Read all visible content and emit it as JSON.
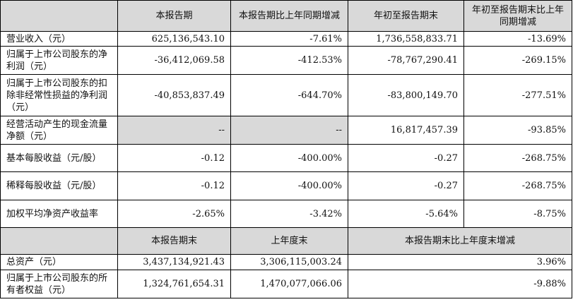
{
  "headers": {
    "col1": "本报告期",
    "col2": "本报告期比上年同期增减",
    "col3": "年初至报告期末",
    "col4": "年初至报告期末比上年同期增减"
  },
  "rows": [
    {
      "label": "营业收入（元）",
      "v1": "625,136,543.10",
      "v2": "-7.61%",
      "v3": "1,736,558,833.71",
      "v4": "-13.69%"
    },
    {
      "label": "归属于上市公司股东的净利润（元）",
      "v1": "-36,412,069.58",
      "v2": "-412.53%",
      "v3": "-78,767,290.41",
      "v4": "-269.15%"
    },
    {
      "label": "归属于上市公司股东的扣除非经常性损益的净利润（元）",
      "v1": "-40,853,837.49",
      "v2": "-644.70%",
      "v3": "-83,800,149.70",
      "v4": "-277.51%"
    },
    {
      "label": "经营活动产生的现金流量净额（元）",
      "v1": "--",
      "v2": "--",
      "v3": "16,817,457.39",
      "v4": "-93.85%"
    },
    {
      "label": "基本每股收益（元/股）",
      "v1": "-0.12",
      "v2": "-400.00%",
      "v3": "-0.27",
      "v4": "-268.75%"
    },
    {
      "label": "稀释每股收益（元/股）",
      "v1": "-0.12",
      "v2": "-400.00%",
      "v3": "-0.27",
      "v4": "-268.75%"
    },
    {
      "label": "加权平均净资产收益率",
      "v1": "-2.65%",
      "v2": "-3.42%",
      "v3": "-5.64%",
      "v4": "-8.75%"
    }
  ],
  "headers2": {
    "col1": "本报告期末",
    "col2": "上年度末",
    "col3": "本报告期末比上年度末增减"
  },
  "rows2": [
    {
      "label": "总资产（元）",
      "v1": "3,437,134,921.43",
      "v2": "3,306,115,003.24",
      "v3": "3.96%"
    },
    {
      "label": "归属于上市公司股东的所有者权益（元）",
      "v1": "1,324,761,654.31",
      "v2": "1,470,077,066.06",
      "v3": "-9.88%"
    }
  ]
}
